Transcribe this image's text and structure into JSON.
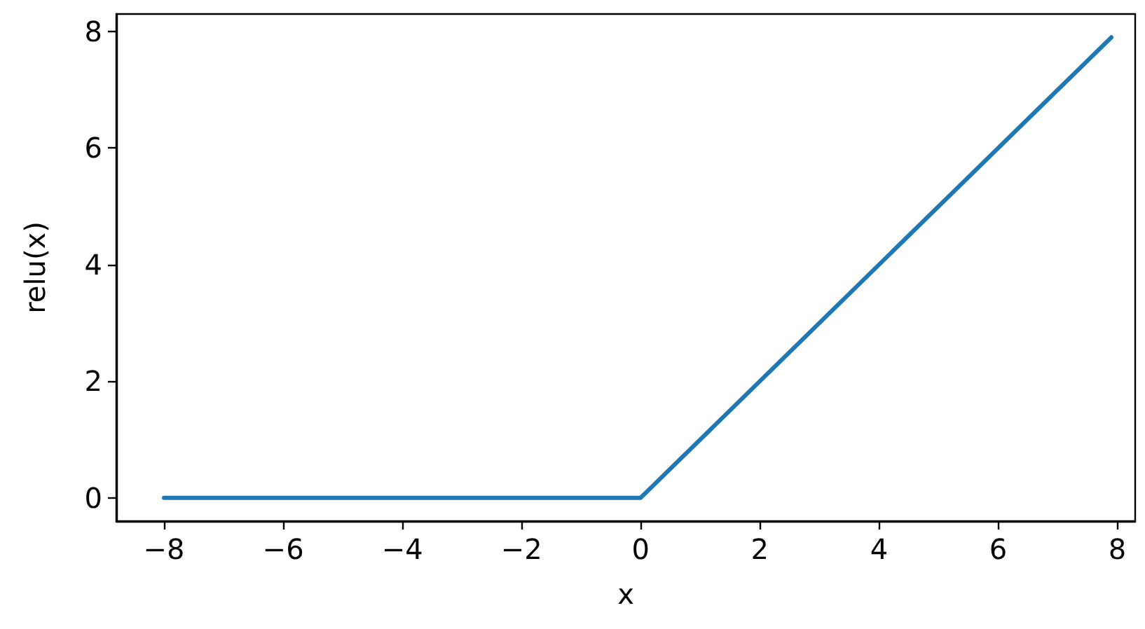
{
  "chart_data": {
    "type": "line",
    "xlabel": "x",
    "ylabel": "relu(x)",
    "x": [
      -8,
      0,
      7.9
    ],
    "series": [
      {
        "color": "#1f77b4",
        "values": [
          0,
          0,
          7.9
        ]
      }
    ],
    "xlim": [
      -8.8,
      8.3
    ],
    "ylim": [
      -0.4,
      8.3
    ],
    "xticks": [
      {
        "value": -8,
        "label": "−8"
      },
      {
        "value": -6,
        "label": "−6"
      },
      {
        "value": -4,
        "label": "−4"
      },
      {
        "value": -2,
        "label": "−2"
      },
      0,
      2,
      4,
      6,
      8
    ],
    "yticks": [
      0,
      2,
      4,
      6,
      8
    ],
    "grid": false,
    "marker": "none",
    "line_style": "solid"
  }
}
